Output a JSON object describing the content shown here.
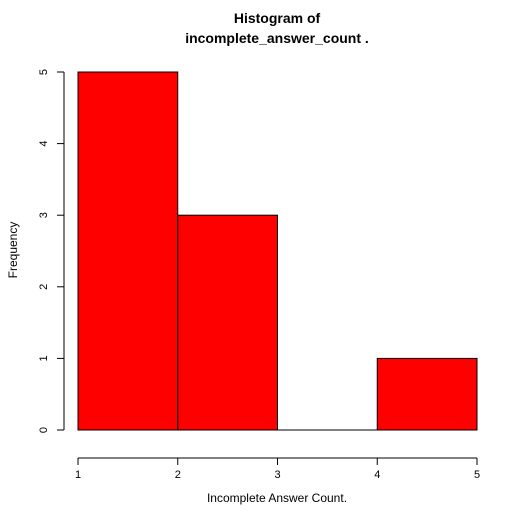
{
  "chart_data": {
    "type": "bar",
    "title_lines": [
      "Histogram of",
      "incomplete_answer_count ."
    ],
    "xlabel": "Incomplete Answer Count.",
    "ylabel": "Frequency",
    "bins": [
      {
        "x0": 1,
        "x1": 2,
        "count": 5
      },
      {
        "x0": 2,
        "x1": 3,
        "count": 3
      },
      {
        "x0": 3,
        "x1": 4,
        "count": 0
      },
      {
        "x0": 4,
        "x1": 5,
        "count": 1
      }
    ],
    "x_ticks": [
      "1",
      "2",
      "3",
      "4",
      "5"
    ],
    "y_ticks": [
      "0",
      "1",
      "2",
      "3",
      "4",
      "5"
    ],
    "xlim": [
      1,
      5
    ],
    "ylim": [
      0,
      5
    ],
    "bar_color": "#ff0000",
    "border_color": "#000000",
    "grid": false,
    "legend": "none"
  }
}
